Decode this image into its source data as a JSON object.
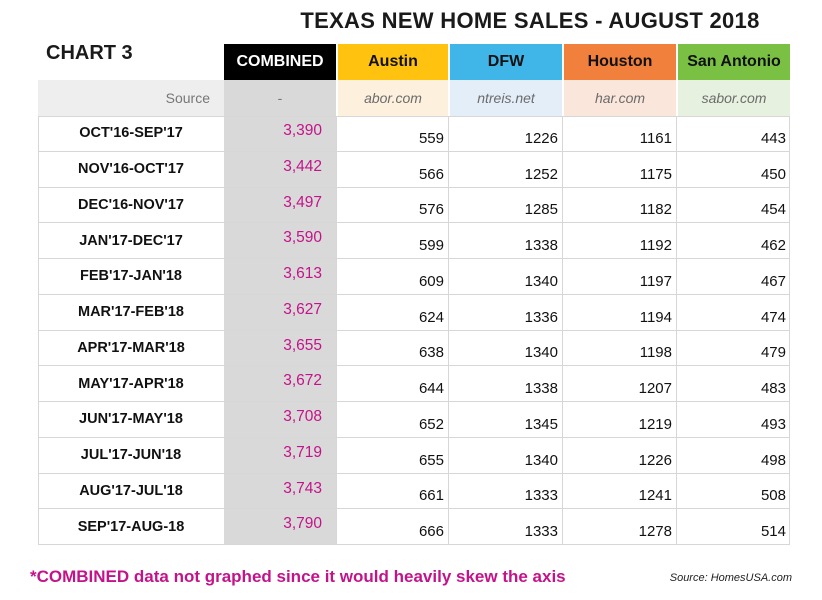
{
  "title": "TEXAS NEW HOME SALES - AUGUST 2018",
  "chart_label": "CHART 3",
  "colors": {
    "combined": "#000000",
    "austin": "#ffc20e",
    "dfw": "#40b5e8",
    "houston": "#f0803c",
    "san_antonio": "#7ac143",
    "combined_text": "#c4138a"
  },
  "source_row_label": "Source",
  "footnote": "*COMBINED data not graphed since it would heavily skew the axis",
  "source_note": "Source: HomesUSA.com",
  "chart_data": {
    "type": "table",
    "columns": [
      {
        "name": "COMBINED",
        "source": "-"
      },
      {
        "name": "Austin",
        "source": "abor.com"
      },
      {
        "name": "DFW",
        "source": "ntreis.net"
      },
      {
        "name": "Houston",
        "source": "har.com"
      },
      {
        "name": "San Antonio",
        "source": "sabor.com"
      }
    ],
    "rows": [
      {
        "period": "OCT'16-SEP'17",
        "values": [
          "3,390",
          "559",
          "1226",
          "1161",
          "443"
        ]
      },
      {
        "period": "NOV'16-OCT'17",
        "values": [
          "3,442",
          "566",
          "1252",
          "1175",
          "450"
        ]
      },
      {
        "period": "DEC'16-NOV'17",
        "values": [
          "3,497",
          "576",
          "1285",
          "1182",
          "454"
        ]
      },
      {
        "period": "JAN'17-DEC'17",
        "values": [
          "3,590",
          "599",
          "1338",
          "1192",
          "462"
        ]
      },
      {
        "period": "FEB'17-JAN'18",
        "values": [
          "3,613",
          "609",
          "1340",
          "1197",
          "467"
        ]
      },
      {
        "period": "MAR'17-FEB'18",
        "values": [
          "3,627",
          "624",
          "1336",
          "1194",
          "474"
        ]
      },
      {
        "period": "APR'17-MAR'18",
        "values": [
          "3,655",
          "638",
          "1340",
          "1198",
          "479"
        ]
      },
      {
        "period": "MAY'17-APR'18",
        "values": [
          "3,672",
          "644",
          "1338",
          "1207",
          "483"
        ]
      },
      {
        "period": "JUN'17-MAY'18",
        "values": [
          "3,708",
          "652",
          "1345",
          "1219",
          "493"
        ]
      },
      {
        "period": "JUL'17-JUN'18",
        "values": [
          "3,719",
          "655",
          "1340",
          "1226",
          "498"
        ]
      },
      {
        "period": "AUG'17-JUL'18",
        "values": [
          "3,743",
          "661",
          "1333",
          "1241",
          "508"
        ]
      },
      {
        "period": "SEP'17-AUG-18",
        "values": [
          "3,790",
          "666",
          "1333",
          "1278",
          "514"
        ]
      }
    ]
  }
}
